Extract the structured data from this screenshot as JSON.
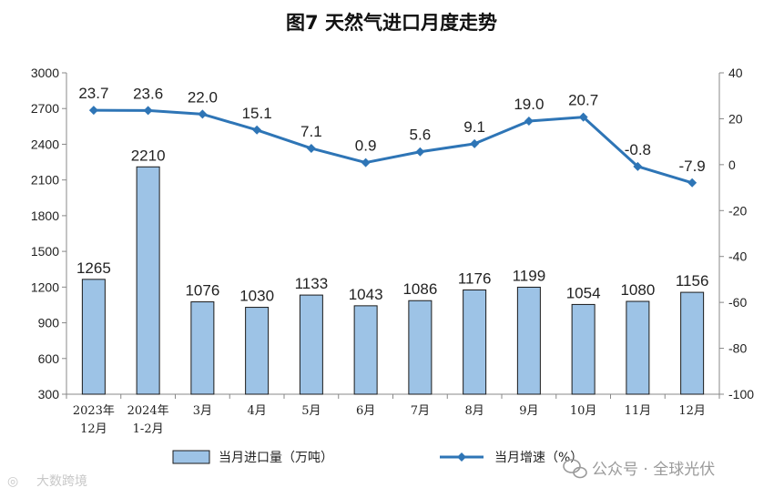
{
  "chart_data": {
    "type": "bar+line",
    "title": "图7  天然气进口月度走势",
    "categories": [
      [
        "2023年",
        "12月"
      ],
      [
        "2024年",
        "1-2月"
      ],
      [
        "3月"
      ],
      [
        "4月"
      ],
      [
        "5月"
      ],
      [
        "6月"
      ],
      [
        "7月"
      ],
      [
        "8月"
      ],
      [
        "9月"
      ],
      [
        "10月"
      ],
      [
        "11月"
      ],
      [
        "12月"
      ]
    ],
    "bar_series": {
      "name": "当月进口量（万吨）",
      "values": [
        1265,
        2210,
        1076,
        1030,
        1133,
        1043,
        1086,
        1176,
        1199,
        1054,
        1080,
        1156
      ],
      "axis": "left",
      "color_fill": "#9dc3e6",
      "color_stroke": "#1a1a1a"
    },
    "line_series": {
      "name": "当月增速（%）",
      "values": [
        23.7,
        23.6,
        22.0,
        15.1,
        7.1,
        0.9,
        5.6,
        9.1,
        19.0,
        20.7,
        -0.8,
        -7.9
      ],
      "labels": [
        "23.7",
        "23.6",
        "22.0",
        "15.1",
        "7.1",
        "0.9",
        "5.6",
        "9.1",
        "19.0",
        "20.7",
        "-0.8",
        "-7.9"
      ],
      "axis": "right",
      "color": "#2e75b6"
    },
    "left_axis": {
      "ticks": [
        300,
        600,
        900,
        1200,
        1500,
        1800,
        2100,
        2400,
        2700,
        3000
      ],
      "ylim": [
        300,
        3000
      ]
    },
    "right_axis": {
      "ticks": [
        -100,
        -80,
        -60,
        -40,
        -20,
        0,
        20,
        40
      ],
      "ylim": [
        -100,
        40
      ]
    },
    "legend_placement": "bottom",
    "grid": false
  },
  "watermarks": {
    "left": "大数跨境",
    "right": "公众号 · 全球光伏"
  }
}
